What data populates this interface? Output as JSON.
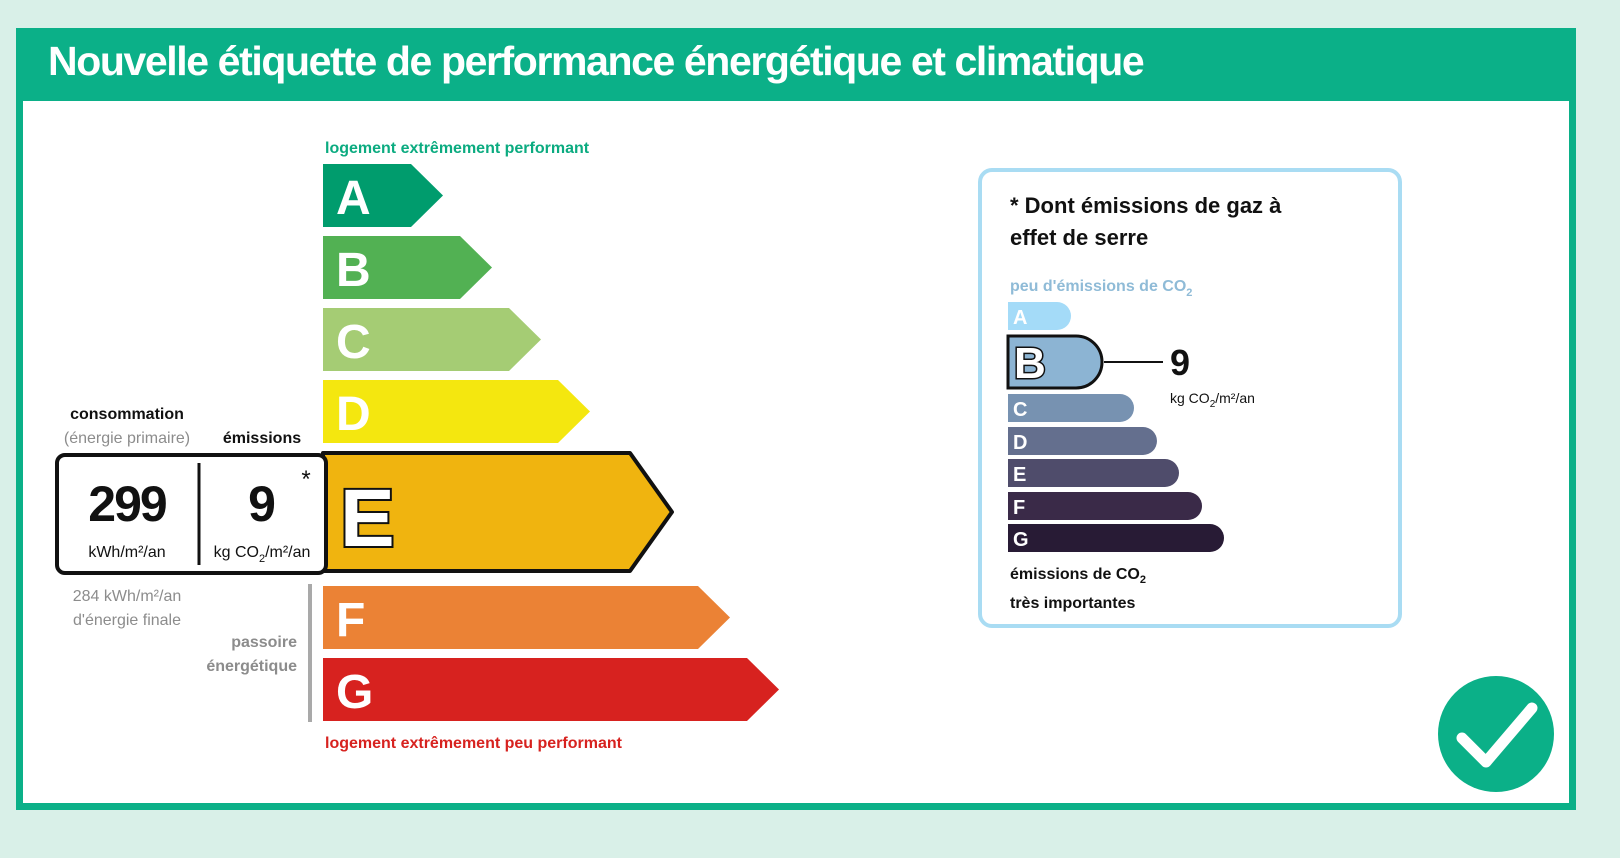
{
  "title": "Nouvelle étiquette de performance énergétique et climatique",
  "energy_scale": {
    "top_label": "logement extrêmement performant",
    "bottom_label": "logement extrêmement peu performant",
    "classes": [
      {
        "letter": "A",
        "color": "#009c6d"
      },
      {
        "letter": "B",
        "color": "#52b153"
      },
      {
        "letter": "C",
        "color": "#a5cc74"
      },
      {
        "letter": "D",
        "color": "#f4e70f"
      },
      {
        "letter": "E",
        "color": "#f0b40f"
      },
      {
        "letter": "F",
        "color": "#eb8235"
      },
      {
        "letter": "G",
        "color": "#d7221f"
      }
    ],
    "current_class": "E"
  },
  "consumption": {
    "heading": "consommation",
    "subheading": "(énergie primaire)",
    "value": "299",
    "unit": "kWh/m²/an",
    "final_value_line": "284 kWh/m²/an",
    "final_label_line": "d'énergie finale"
  },
  "emissions": {
    "heading": "émissions",
    "value": "9",
    "unit_prefix": "kg CO",
    "unit_sub": "2",
    "unit_suffix": "/m²/an",
    "asterisk": "*"
  },
  "passoire": {
    "line1": "passoire",
    "line2": "énergétique"
  },
  "ghg": {
    "title": "* Dont émissions de gaz à effet de serre",
    "top_label_prefix": "peu d'émissions de CO",
    "top_label_sub": "2",
    "bottom_label_line1_prefix": "émissions de CO",
    "bottom_label_line1_sub": "2",
    "bottom_label_line2": "très importantes",
    "classes": [
      {
        "letter": "A",
        "color": "#a4dbf8"
      },
      {
        "letter": "B",
        "color": "#8cb4d3"
      },
      {
        "letter": "C",
        "color": "#7792b1"
      },
      {
        "letter": "D",
        "color": "#646f8e"
      },
      {
        "letter": "E",
        "color": "#4f4c6b"
      },
      {
        "letter": "F",
        "color": "#3a2a48"
      },
      {
        "letter": "G",
        "color": "#281b35"
      }
    ],
    "current_class": "B",
    "value": "9",
    "unit_prefix": "kg CO",
    "unit_sub": "2",
    "unit_suffix": "/m²/an"
  },
  "colors": {
    "brand_green": "#0bb088",
    "title_text": "#ffffff",
    "top_label": "#0bab80",
    "bottom_label": "#d7221f",
    "muted_text": "#8c8c8c"
  },
  "check_icon": "check-circle-icon"
}
